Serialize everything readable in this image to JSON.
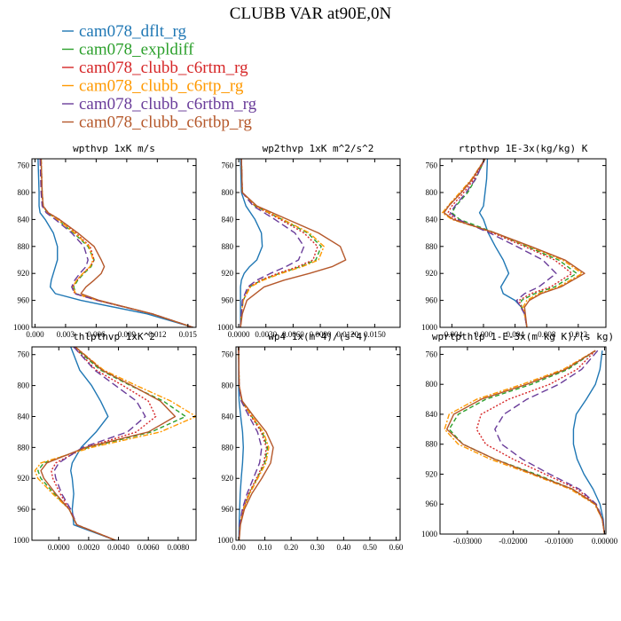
{
  "figure_title": "CLUBB VAR at90E,0N",
  "legend": [
    {
      "label": "cam078_dflt_rg",
      "color": "#1f77b4",
      "dash": "solid"
    },
    {
      "label": "cam078_expldiff",
      "color": "#2ca02c",
      "dash": "dash"
    },
    {
      "label": "cam078_clubb_c6rtm_rg",
      "color": "#d62728",
      "dash": "dot"
    },
    {
      "label": "cam078_clubb_c6rtp_rg",
      "color": "#ff9900",
      "dash": "dashdot"
    },
    {
      "label": "cam078_clubb_c6rtbm_rg",
      "color": "#6a3d9a",
      "dash": "longdash"
    },
    {
      "label": "cam078_clubb_c6rtbp_rg",
      "color": "#b5582b",
      "dash": "solid"
    }
  ],
  "chart_data": [
    {
      "type": "line",
      "title": "wpthvp  1xK m/s",
      "xlim": [
        -0.0003,
        0.0158
      ],
      "ylim": [
        750,
        1000
      ],
      "y_inverted": true,
      "xticks": [
        "0.000",
        "0.003",
        "0.006",
        "0.009",
        "0.012",
        "0.015"
      ],
      "xtick_values": [
        0,
        0.003,
        0.006,
        0.009,
        0.012,
        0.015
      ],
      "yticks": [
        760,
        800,
        840,
        880,
        920,
        960,
        1000
      ],
      "pressure": [
        750,
        800,
        820,
        830,
        840,
        860,
        880,
        900,
        910,
        920,
        930,
        940,
        950,
        960,
        980,
        1000
      ],
      "series": [
        {
          "values": [
            0.0003,
            0.0004,
            0.0004,
            0.0005,
            0.001,
            0.0018,
            0.0022,
            0.0022,
            0.002,
            0.0018,
            0.0016,
            0.0015,
            0.002,
            0.0045,
            0.011,
            0.0155
          ]
        },
        {
          "values": [
            0.0006,
            0.0007,
            0.0008,
            0.0012,
            0.0022,
            0.0038,
            0.0052,
            0.0058,
            0.0055,
            0.0048,
            0.0042,
            0.0038,
            0.004,
            0.0062,
            0.0115,
            0.0155
          ]
        },
        {
          "values": [
            0.0006,
            0.0007,
            0.0008,
            0.0013,
            0.0024,
            0.004,
            0.0054,
            0.0058,
            0.0054,
            0.0047,
            0.0041,
            0.0037,
            0.0039,
            0.0061,
            0.0115,
            0.0155
          ]
        },
        {
          "values": [
            0.0006,
            0.0007,
            0.0008,
            0.0012,
            0.0022,
            0.0039,
            0.0053,
            0.0057,
            0.0054,
            0.0047,
            0.0041,
            0.0037,
            0.004,
            0.0062,
            0.0115,
            0.0155
          ]
        },
        {
          "values": [
            0.0005,
            0.0006,
            0.0007,
            0.0011,
            0.002,
            0.0036,
            0.0048,
            0.0052,
            0.005,
            0.0044,
            0.0039,
            0.0036,
            0.0039,
            0.0061,
            0.0115,
            0.0155
          ]
        },
        {
          "values": [
            0.0006,
            0.0007,
            0.0008,
            0.0013,
            0.0024,
            0.0042,
            0.0058,
            0.0065,
            0.0068,
            0.0065,
            0.0058,
            0.005,
            0.0045,
            0.0063,
            0.0115,
            0.0155
          ]
        }
      ]
    },
    {
      "type": "line",
      "title": "wp2thvp  1xK m^2/s^2",
      "xlim": [
        -0.0003,
        0.0178
      ],
      "ylim": [
        750,
        1000
      ],
      "y_inverted": true,
      "xticks": [
        "0.0000",
        "0.0030",
        "0.0060",
        "0.0090",
        "0.0120",
        "0.0150"
      ],
      "xtick_values": [
        0,
        0.003,
        0.006,
        0.009,
        0.012,
        0.015
      ],
      "yticks": [
        760,
        800,
        840,
        880,
        920,
        960,
        1000
      ],
      "pressure": [
        750,
        800,
        820,
        840,
        860,
        880,
        900,
        910,
        920,
        930,
        940,
        960,
        980,
        1000
      ],
      "series": [
        {
          "values": [
            0.0002,
            0.0003,
            0.0008,
            0.0018,
            0.0025,
            0.0026,
            0.002,
            0.0012,
            0.0006,
            0.0003,
            0.0002,
            0.0002,
            0.0002,
            0.0002
          ]
        },
        {
          "values": [
            0.0003,
            0.0004,
            0.0018,
            0.0048,
            0.0076,
            0.0091,
            0.0085,
            0.0068,
            0.0045,
            0.0025,
            0.0012,
            0.0005,
            0.0003,
            0.0002
          ]
        },
        {
          "values": [
            0.0003,
            0.0004,
            0.0018,
            0.0046,
            0.0072,
            0.0087,
            0.0082,
            0.0065,
            0.0043,
            0.0024,
            0.0012,
            0.0005,
            0.0003,
            0.0002
          ]
        },
        {
          "values": [
            0.0003,
            0.0004,
            0.0019,
            0.0049,
            0.0078,
            0.0094,
            0.0088,
            0.007,
            0.0047,
            0.0027,
            0.0013,
            0.0005,
            0.0003,
            0.0002
          ]
        },
        {
          "values": [
            0.0003,
            0.0004,
            0.0016,
            0.004,
            0.0062,
            0.0072,
            0.0066,
            0.0052,
            0.0035,
            0.002,
            0.001,
            0.0004,
            0.0003,
            0.0002
          ]
        },
        {
          "values": [
            0.0003,
            0.0004,
            0.002,
            0.0054,
            0.0088,
            0.0112,
            0.0118,
            0.0103,
            0.0078,
            0.005,
            0.0028,
            0.0009,
            0.0004,
            0.0002
          ]
        }
      ]
    },
    {
      "type": "line",
      "title": "rtpthvp  1E-3x(kg/kg) K",
      "xlim": [
        -0.0055,
        0.0155
      ],
      "ylim": [
        750,
        1000
      ],
      "y_inverted": true,
      "xticks": [
        "-0.004",
        "0.000",
        "0.004",
        "0.008",
        "0.012"
      ],
      "xtick_values": [
        -0.004,
        0,
        0.004,
        0.008,
        0.012
      ],
      "yticks": [
        760,
        800,
        840,
        880,
        920,
        960,
        1000
      ],
      "pressure": [
        750,
        780,
        800,
        820,
        830,
        840,
        860,
        880,
        900,
        920,
        940,
        950,
        960,
        970,
        980,
        1000
      ],
      "series": [
        {
          "values": [
            0.0005,
            0.0004,
            0.0002,
            0.0,
            -0.0005,
            0.0,
            0.0006,
            0.0015,
            0.0025,
            0.0032,
            0.0022,
            0.0025,
            0.004,
            0.0048,
            0.0052,
            0.0055
          ]
        },
        {
          "values": [
            0.0002,
            -0.001,
            -0.002,
            -0.0035,
            -0.004,
            -0.003,
            0.0015,
            0.0055,
            0.0095,
            0.0118,
            0.009,
            0.0065,
            0.0048,
            0.0048,
            0.0052,
            0.0055
          ]
        },
        {
          "values": [
            0.0002,
            -0.0012,
            -0.0025,
            -0.004,
            -0.0045,
            -0.0035,
            0.0012,
            0.0052,
            0.009,
            0.0112,
            0.0085,
            0.006,
            0.0045,
            0.0048,
            0.0052,
            0.0055
          ]
        },
        {
          "values": [
            0.0002,
            -0.0015,
            -0.003,
            -0.0045,
            -0.0052,
            -0.004,
            0.0015,
            0.0058,
            0.01,
            0.0125,
            0.0095,
            0.007,
            0.0055,
            0.005,
            0.0052,
            0.0055
          ]
        },
        {
          "values": [
            0.0002,
            -0.001,
            -0.0022,
            -0.0036,
            -0.0042,
            -0.0032,
            0.0008,
            0.0042,
            0.0075,
            0.0092,
            0.007,
            0.0052,
            0.0042,
            0.0047,
            0.0052,
            0.0055
          ]
        },
        {
          "values": [
            0.0002,
            -0.0014,
            -0.0028,
            -0.0044,
            -0.005,
            -0.0038,
            0.0015,
            0.006,
            0.0103,
            0.0128,
            0.0098,
            0.0073,
            0.0058,
            0.0052,
            0.0053,
            0.0055
          ]
        }
      ]
    },
    {
      "type": "line",
      "title": "thlpthvp  1xK^2",
      "xlim": [
        -0.0018,
        0.0092
      ],
      "ylim": [
        750,
        1000
      ],
      "y_inverted": true,
      "xticks": [
        "0.0000",
        "0.0020",
        "0.0040",
        "0.0060",
        "0.0080"
      ],
      "xtick_values": [
        0,
        0.002,
        0.004,
        0.006,
        0.008
      ],
      "yticks": [
        760,
        800,
        840,
        880,
        920,
        960,
        1000
      ],
      "pressure": [
        750,
        780,
        800,
        820,
        840,
        860,
        880,
        900,
        910,
        920,
        940,
        960,
        980,
        1000
      ],
      "series": [
        {
          "values": [
            0.0008,
            0.0014,
            0.0022,
            0.0028,
            0.0033,
            0.0025,
            0.0015,
            0.0009,
            0.0008,
            0.0009,
            0.001,
            0.0009,
            0.001,
            0.0038
          ]
        },
        {
          "values": [
            0.001,
            0.0028,
            0.0048,
            0.007,
            0.0085,
            0.0062,
            0.002,
            -0.001,
            -0.0014,
            -0.0012,
            -0.0003,
            0.0007,
            0.0012,
            0.0038
          ]
        },
        {
          "values": [
            0.001,
            0.0025,
            0.0043,
            0.006,
            0.0065,
            0.0052,
            0.0018,
            -0.0002,
            -0.0005,
            -0.0004,
            0.0001,
            0.0007,
            0.0012,
            0.0038
          ]
        },
        {
          "values": [
            0.0011,
            0.003,
            0.0052,
            0.0075,
            0.0092,
            0.0068,
            0.0022,
            -0.0012,
            -0.0016,
            -0.0014,
            -0.0004,
            0.0007,
            0.0012,
            0.0038
          ]
        },
        {
          "values": [
            0.001,
            0.0024,
            0.0038,
            0.0052,
            0.0058,
            0.0046,
            0.0016,
            0.0,
            -0.0003,
            -0.0002,
            0.0002,
            0.0008,
            0.0012,
            0.0038
          ]
        },
        {
          "values": [
            0.0011,
            0.0029,
            0.0049,
            0.0068,
            0.0078,
            0.006,
            0.0018,
            -0.0008,
            -0.0012,
            -0.001,
            -0.0002,
            0.0007,
            0.0012,
            0.0038
          ]
        }
      ]
    },
    {
      "type": "line",
      "title": "wp4  1x(m^4)/(s^4)",
      "xlim": [
        -0.01,
        0.615
      ],
      "ylim": [
        750,
        1000
      ],
      "y_inverted": true,
      "xticks": [
        "0.00",
        "0.10",
        "0.20",
        "0.30",
        "0.40",
        "0.50",
        "0.60"
      ],
      "xtick_values": [
        0,
        0.1,
        0.2,
        0.3,
        0.4,
        0.5,
        0.6
      ],
      "yticks": [
        760,
        800,
        840,
        880,
        920,
        960,
        1000
      ],
      "pressure": [
        750,
        800,
        820,
        840,
        860,
        880,
        900,
        920,
        940,
        960,
        980,
        1000
      ],
      "series": [
        {
          "values": [
            0.0,
            0.0,
            0.002,
            0.008,
            0.015,
            0.018,
            0.015,
            0.01,
            0.006,
            0.004,
            0.002,
            0.001
          ]
        },
        {
          "values": [
            0.0,
            0.002,
            0.012,
            0.05,
            0.09,
            0.11,
            0.1,
            0.07,
            0.04,
            0.018,
            0.005,
            0.002
          ]
        },
        {
          "values": [
            0.0,
            0.002,
            0.012,
            0.048,
            0.086,
            0.106,
            0.096,
            0.068,
            0.038,
            0.017,
            0.005,
            0.002
          ]
        },
        {
          "values": [
            0.0,
            0.002,
            0.013,
            0.052,
            0.094,
            0.115,
            0.104,
            0.073,
            0.042,
            0.019,
            0.006,
            0.002
          ]
        },
        {
          "values": [
            0.0,
            0.002,
            0.01,
            0.04,
            0.072,
            0.088,
            0.08,
            0.056,
            0.032,
            0.014,
            0.004,
            0.002
          ]
        },
        {
          "values": [
            0.0,
            0.002,
            0.014,
            0.058,
            0.105,
            0.132,
            0.122,
            0.088,
            0.05,
            0.022,
            0.007,
            0.002
          ]
        }
      ]
    },
    {
      "type": "line",
      "title": "wprtpthlp  1-E-3x(m kg K)/(s kg)",
      "xlim": [
        -0.036,
        0.0003
      ],
      "ylim": [
        750,
        1000
      ],
      "y_inverted": true,
      "xticks": [
        "-0.03000",
        "-0.02000",
        "-0.01000",
        "0.00000"
      ],
      "xtick_values": [
        -0.03,
        -0.02,
        -0.01,
        0
      ],
      "yticks": [
        760,
        800,
        840,
        880,
        920,
        960,
        1000
      ],
      "pressure": [
        755,
        780,
        800,
        820,
        840,
        860,
        880,
        900,
        920,
        940,
        960,
        980,
        1000
      ],
      "series": [
        {
          "values": [
            -0.0005,
            -0.001,
            -0.002,
            -0.004,
            -0.0062,
            -0.0068,
            -0.0068,
            -0.006,
            -0.0045,
            -0.0025,
            -0.001,
            -0.0003,
            0.0
          ]
        },
        {
          "values": [
            -0.002,
            -0.008,
            -0.016,
            -0.026,
            -0.032,
            -0.034,
            -0.031,
            -0.024,
            -0.015,
            -0.007,
            -0.002,
            -0.0005,
            0.0
          ]
        },
        {
          "values": [
            -0.002,
            -0.006,
            -0.012,
            -0.021,
            -0.027,
            -0.028,
            -0.026,
            -0.02,
            -0.013,
            -0.006,
            -0.002,
            -0.0005,
            0.0
          ]
        },
        {
          "values": [
            -0.002,
            -0.009,
            -0.018,
            -0.028,
            -0.034,
            -0.035,
            -0.032,
            -0.025,
            -0.016,
            -0.0075,
            -0.0022,
            -0.0005,
            0.0
          ]
        },
        {
          "values": [
            -0.0015,
            -0.005,
            -0.01,
            -0.017,
            -0.022,
            -0.024,
            -0.0225,
            -0.018,
            -0.012,
            -0.0055,
            -0.0018,
            -0.0004,
            0.0
          ]
        },
        {
          "values": [
            -0.002,
            -0.0085,
            -0.017,
            -0.027,
            -0.033,
            -0.0345,
            -0.031,
            -0.024,
            -0.0155,
            -0.007,
            -0.002,
            -0.0005,
            0.0
          ]
        }
      ]
    }
  ]
}
